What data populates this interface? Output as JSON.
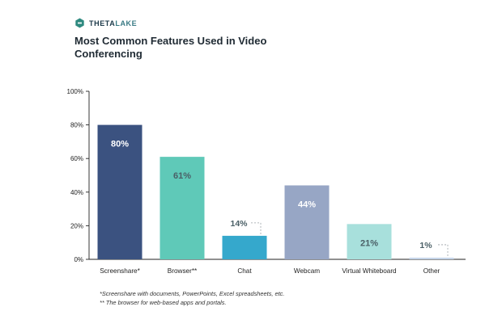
{
  "brand": {
    "name_part1": "THETA",
    "name_part2": "LAKE",
    "colors": {
      "mark": "#2f8a80",
      "text_dark": "#1d3a4a",
      "text_accent": "#3a7b85"
    }
  },
  "chart_data": {
    "type": "bar",
    "title": "Most Common Features Used in Video Conferencing",
    "categories": [
      "Screenshare*",
      "Browser**",
      "Chat",
      "Webcam",
      "Virtual Whiteboard",
      "Other"
    ],
    "values": [
      80,
      61,
      14,
      44,
      21,
      1
    ],
    "data_labels": [
      "80%",
      "61%",
      "14%",
      "44%",
      "21%",
      "1%"
    ],
    "bar_colors": [
      "#3b5280",
      "#5fc9b8",
      "#35a8cc",
      "#97a6c5",
      "#a8e0dc",
      "#c5d4e8"
    ],
    "label_colors": [
      "#ffffff",
      "#4a5f66",
      "#4a5f66",
      "#ffffff",
      "#4a5f66",
      "#4a5f66"
    ],
    "external_label": [
      false,
      false,
      true,
      false,
      false,
      true
    ],
    "ylim": [
      0,
      100
    ],
    "yticks": [
      0,
      20,
      40,
      60,
      80,
      100
    ],
    "ytick_labels": [
      "0%",
      "20%",
      "40%",
      "60%",
      "80%",
      "100%"
    ],
    "xlabel": "",
    "ylabel": "",
    "grid": false
  },
  "footnotes": [
    "*Screenshare with documents, PowerPoints, Excel spreadsheets, etc.",
    "** The browser for web-based apps and portals."
  ]
}
